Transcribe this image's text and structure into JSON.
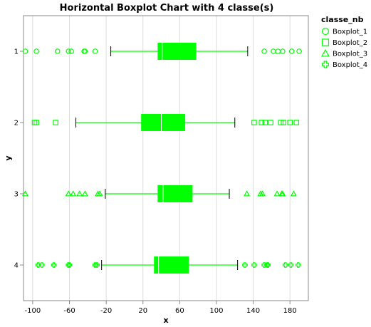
{
  "chart_data": {
    "type": "boxplot",
    "orientation": "horizontal",
    "title": "Horizontal Boxplot Chart with 4 classe(s)",
    "xlabel": "x",
    "ylabel": "y",
    "xlim": [
      -110,
      200
    ],
    "xticks": [
      -100,
      -60,
      -20,
      20,
      60,
      100,
      140,
      180
    ],
    "categories": [
      "1",
      "2",
      "3",
      "4"
    ],
    "color": "#00ff00",
    "median_color": "#ffffff",
    "whisker_cap_color": "#000000",
    "grid": true,
    "legend": {
      "title": "classe_nb",
      "placement": "top-right",
      "entries": [
        {
          "label": "Boxplot_1",
          "shape": "circle"
        },
        {
          "label": "Boxplot_2",
          "shape": "square"
        },
        {
          "label": "Boxplot_3",
          "shape": "triangle"
        },
        {
          "label": "Boxplot_4",
          "shape": "cross"
        }
      ]
    },
    "series": [
      {
        "name": "Boxplot_1",
        "category": "1",
        "shape": "circle",
        "whisker_low": -15,
        "q1": 36,
        "median": 41,
        "q3": 78,
        "whisker_high": 134,
        "outliers": [
          -108,
          -96,
          -73,
          -61,
          -58,
          -44,
          -43,
          -32,
          152,
          162,
          167,
          172,
          182,
          190
        ]
      },
      {
        "name": "Boxplot_2",
        "category": "2",
        "shape": "square",
        "whisker_low": -53,
        "q1": 18,
        "median": 40,
        "q3": 66,
        "whisker_high": 120,
        "outliers": [
          -98,
          -96,
          -75,
          141,
          149,
          153,
          159,
          170,
          173,
          180,
          187
        ]
      },
      {
        "name": "Boxplot_3",
        "category": "3",
        "shape": "triangle",
        "whisker_low": -21,
        "q1": 36,
        "median": 42,
        "q3": 74,
        "whisker_high": 114,
        "outliers": [
          -108,
          -61,
          -56,
          -49,
          -43,
          -29,
          -27,
          133,
          148,
          150,
          166,
          171,
          172,
          184
        ]
      },
      {
        "name": "Boxplot_4",
        "category": "4",
        "shape": "cross",
        "whisker_low": -25,
        "q1": 32,
        "median": 37,
        "q3": 70,
        "whisker_high": 123,
        "outliers": [
          -94,
          -90,
          -77,
          -61,
          -60,
          -32,
          -30,
          131,
          141,
          152,
          155,
          156,
          175,
          181,
          189
        ]
      }
    ]
  }
}
